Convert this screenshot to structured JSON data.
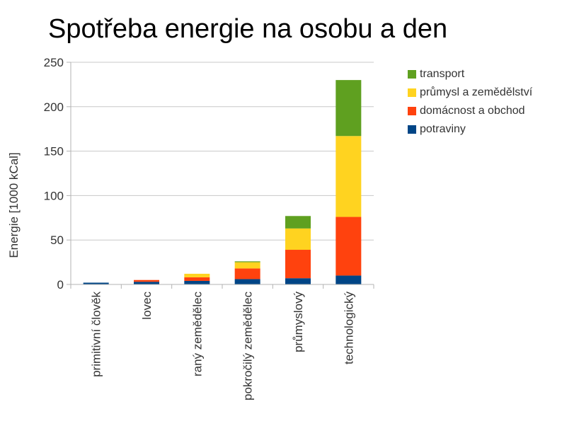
{
  "title": "Spotřeba energie na osobu a den",
  "colors": {
    "transport": "#5fa020",
    "industry": "#ffd320",
    "household": "#ff420e",
    "food": "#004586",
    "grid": "#c8c8c8",
    "axis": "#b3b3b3",
    "text": "#333333"
  },
  "chart_data": {
    "type": "bar",
    "stacked": true,
    "title": "Spotřeba energie na osobu a den",
    "xlabel": "",
    "ylabel": "Energie [1000 kCal]",
    "ylim": [
      0,
      250
    ],
    "yticks": [
      0,
      50,
      100,
      150,
      200,
      250
    ],
    "grid": true,
    "legend_position": "right",
    "categories": [
      "primitivní člověk",
      "lovec",
      "raný zemědělec",
      "pokročilý zemědělec",
      "průmyslový",
      "technologický"
    ],
    "series": [
      {
        "name": "potraviny",
        "color": "#004586",
        "values": [
          2,
          3,
          4,
          6,
          7,
          10
        ]
      },
      {
        "name": "domácnost a obchod",
        "color": "#ff420e",
        "values": [
          0,
          2,
          4,
          12,
          32,
          66
        ]
      },
      {
        "name": "průmysl a zemědělství",
        "color": "#ffd320",
        "values": [
          0,
          0,
          4,
          7,
          24,
          91
        ]
      },
      {
        "name": "transport",
        "color": "#5fa020",
        "values": [
          0,
          0,
          0,
          1,
          14,
          63
        ]
      }
    ]
  }
}
